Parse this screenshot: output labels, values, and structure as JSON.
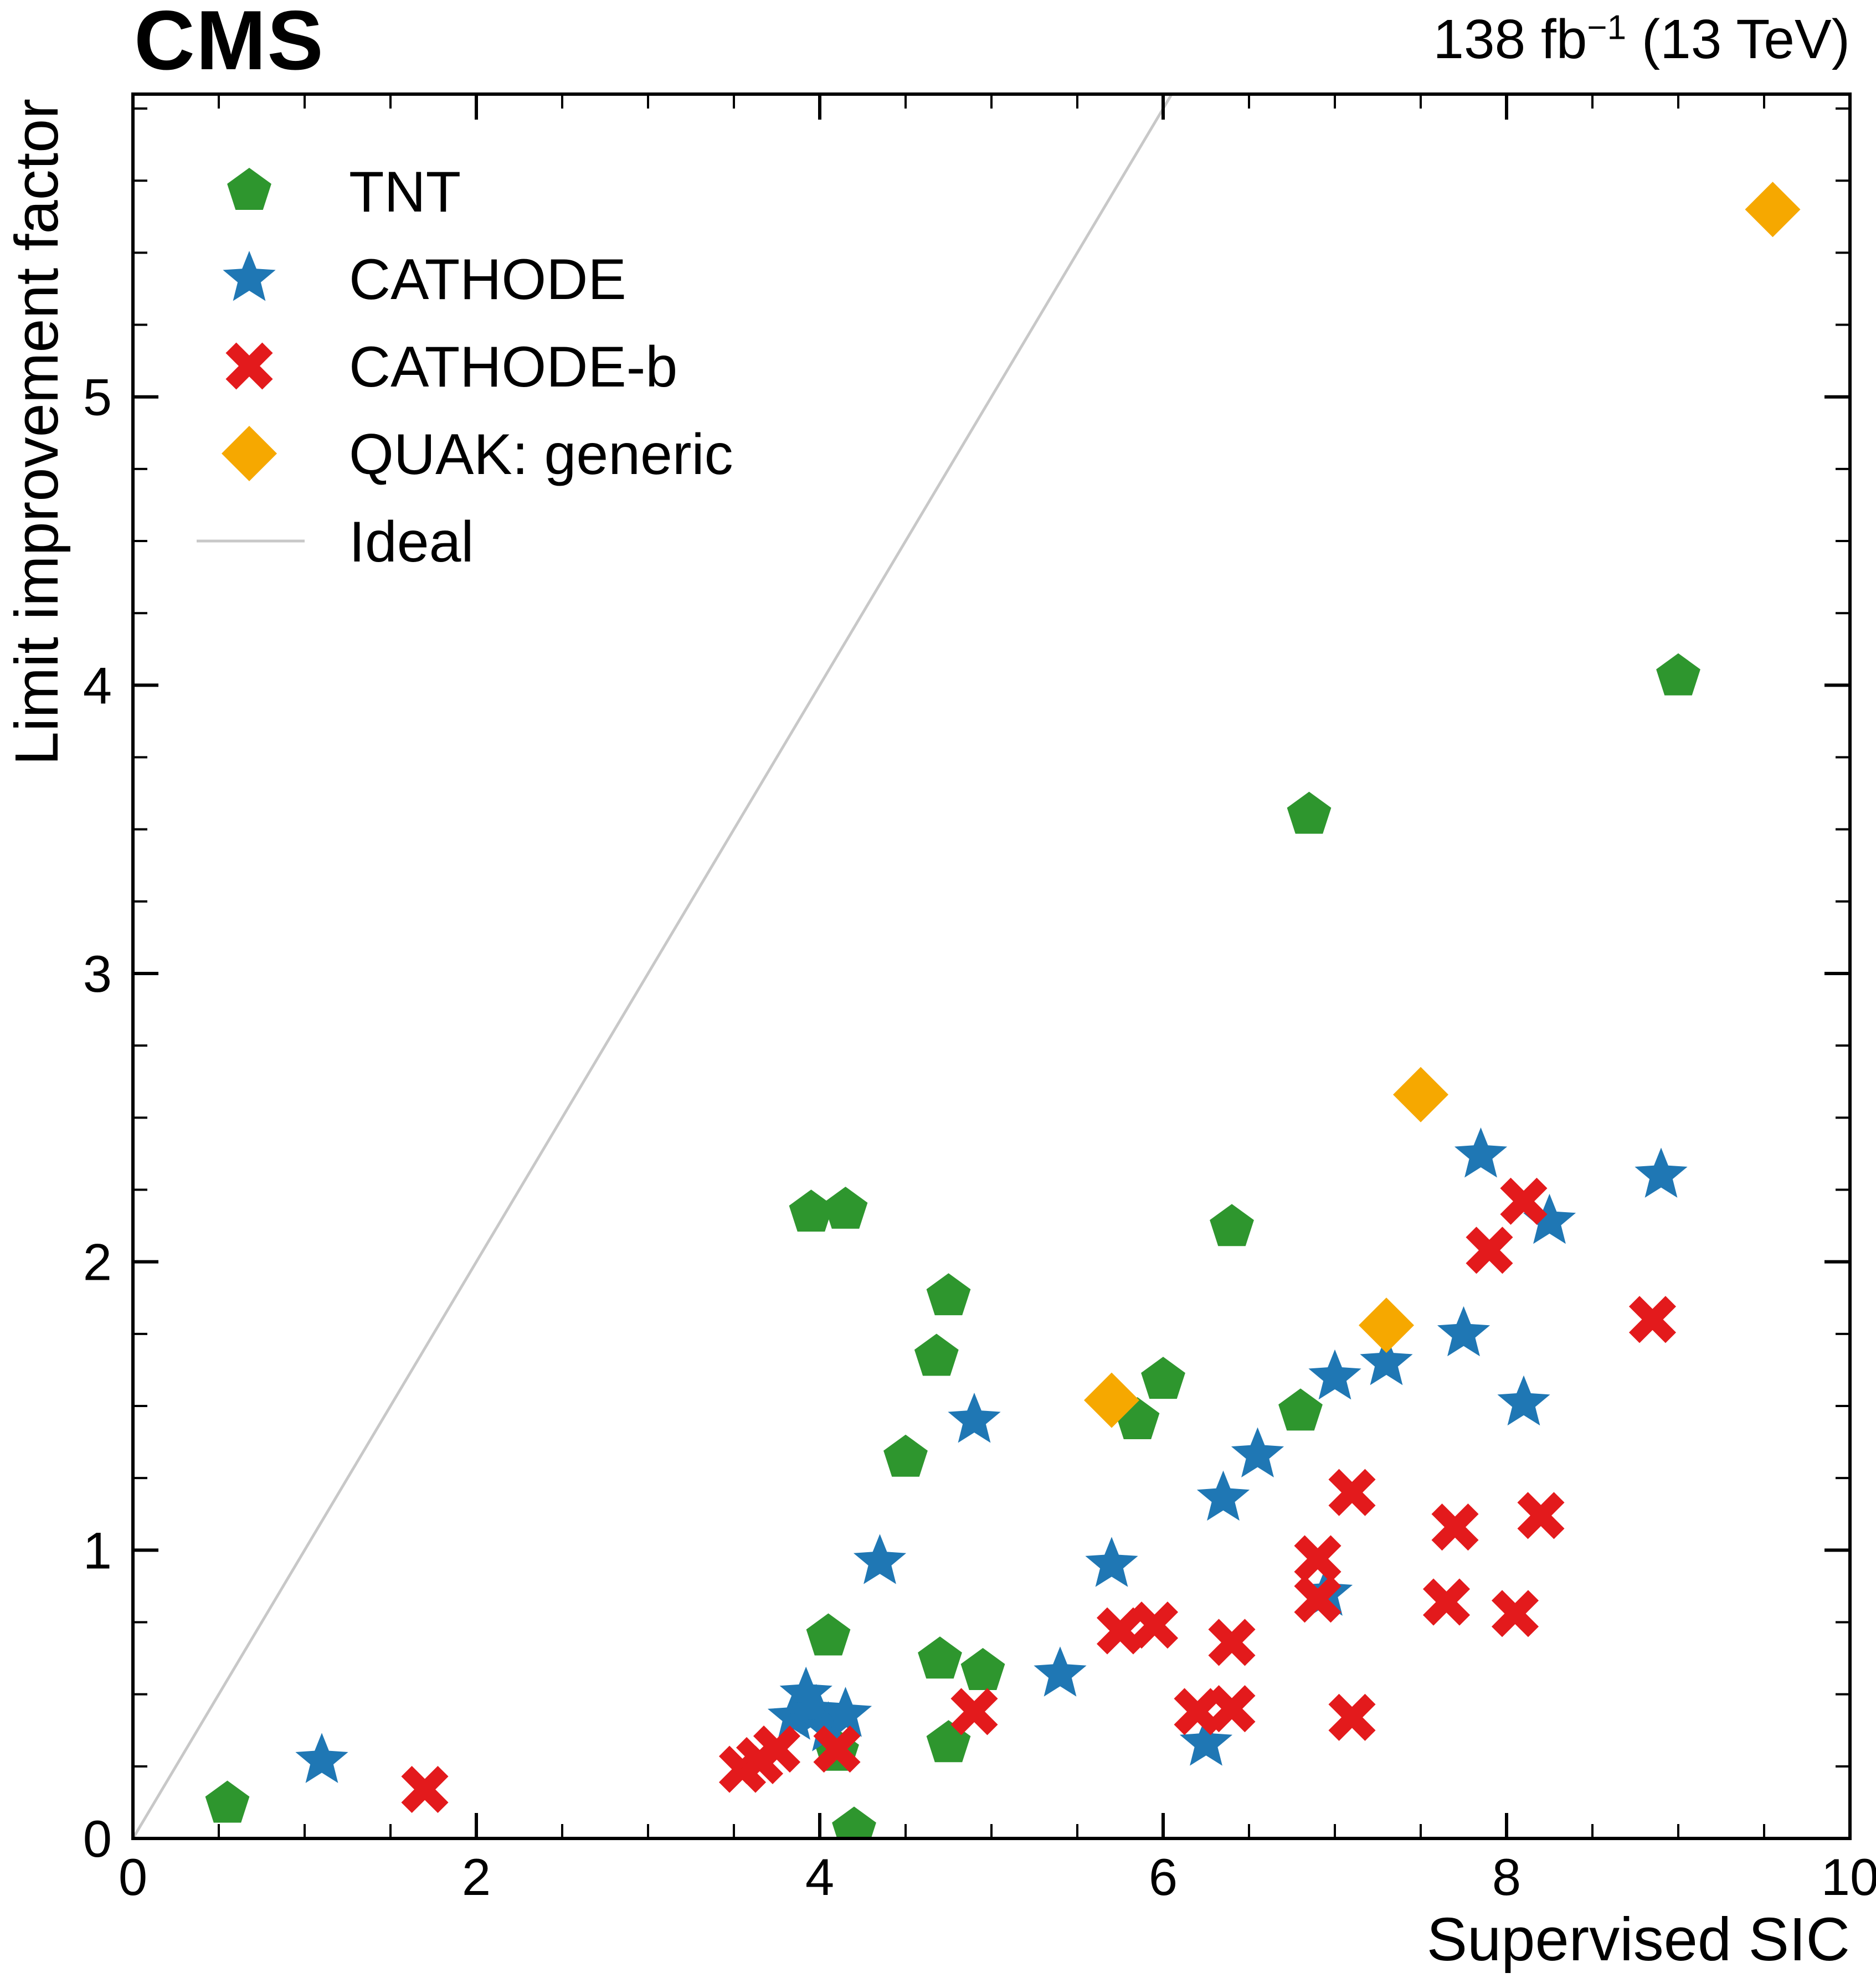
{
  "header": {
    "experiment": "CMS",
    "lumi_value": "138 fb",
    "lumi_sup": "−1",
    "lumi_suffix": " (13 TeV)"
  },
  "chart_data": {
    "type": "scatter",
    "title": "",
    "xlabel": "Supervised SIC",
    "ylabel": "Limit improvement factor",
    "xlim": [
      0,
      10
    ],
    "ylim": [
      0,
      6.05
    ],
    "xticks": [
      0,
      2,
      4,
      6,
      8,
      10
    ],
    "yticks": [
      0,
      1,
      2,
      3,
      4,
      5
    ],
    "x_minor_step": 0.5,
    "y_minor_step": 0.25,
    "grid": false,
    "legend_position": "top-left",
    "frame_color": "#000000",
    "series": [
      {
        "name": "TNT",
        "marker": "pentagon",
        "color": "#2e962e",
        "points": [
          [
            0.55,
            0.12
          ],
          [
            3.95,
            2.17
          ],
          [
            4.15,
            2.18
          ],
          [
            4.75,
            1.88
          ],
          [
            4.68,
            1.67
          ],
          [
            4.5,
            1.32
          ],
          [
            6.4,
            2.12
          ],
          [
            6.85,
            3.55
          ],
          [
            9.0,
            4.03
          ],
          [
            5.85,
            1.45
          ],
          [
            6.0,
            1.59
          ],
          [
            6.8,
            1.48
          ],
          [
            4.05,
            0.7
          ],
          [
            4.7,
            0.62
          ],
          [
            4.95,
            0.58
          ],
          [
            4.1,
            0.3
          ],
          [
            4.75,
            0.33
          ],
          [
            4.2,
            0.03
          ]
        ]
      },
      {
        "name": "CATHODE",
        "marker": "star",
        "color": "#1f77b4",
        "points": [
          [
            1.1,
            0.27
          ],
          [
            3.85,
            0.42
          ],
          [
            3.92,
            0.5
          ],
          [
            3.98,
            0.44
          ],
          [
            4.05,
            0.38
          ],
          [
            4.15,
            0.43
          ],
          [
            4.35,
            0.96
          ],
          [
            4.9,
            1.45
          ],
          [
            5.4,
            0.57
          ],
          [
            5.7,
            0.95
          ],
          [
            6.25,
            0.33
          ],
          [
            6.35,
            1.18
          ],
          [
            6.55,
            1.33
          ],
          [
            6.95,
            0.85
          ],
          [
            7.0,
            1.6
          ],
          [
            7.3,
            1.65
          ],
          [
            7.75,
            1.75
          ],
          [
            7.85,
            2.37
          ],
          [
            8.1,
            1.51
          ],
          [
            8.25,
            2.14
          ],
          [
            8.9,
            2.3
          ]
        ]
      },
      {
        "name": "CATHODE-b",
        "marker": "x",
        "color": "#e31a1c",
        "points": [
          [
            1.7,
            0.17
          ],
          [
            3.55,
            0.24
          ],
          [
            3.65,
            0.27
          ],
          [
            3.75,
            0.31
          ],
          [
            4.1,
            0.31
          ],
          [
            4.9,
            0.44
          ],
          [
            5.75,
            0.72
          ],
          [
            5.95,
            0.74
          ],
          [
            6.2,
            0.44
          ],
          [
            6.4,
            0.45
          ],
          [
            6.4,
            0.68
          ],
          [
            6.9,
            0.97
          ],
          [
            6.9,
            0.83
          ],
          [
            7.1,
            1.2
          ],
          [
            7.1,
            0.42
          ],
          [
            7.7,
            1.08
          ],
          [
            7.65,
            0.82
          ],
          [
            8.05,
            0.78
          ],
          [
            7.9,
            2.04
          ],
          [
            8.1,
            2.21
          ],
          [
            8.2,
            1.12
          ],
          [
            8.85,
            1.8
          ]
        ]
      },
      {
        "name": "QUAK: generic",
        "marker": "diamond",
        "color": "#f6a800",
        "points": [
          [
            5.7,
            1.52
          ],
          [
            7.3,
            1.78
          ],
          [
            7.5,
            2.58
          ],
          [
            9.55,
            5.65
          ]
        ]
      }
    ],
    "reference_line": {
      "name": "Ideal",
      "color": "#c8c8c8",
      "slope": 1,
      "intercept": 0
    }
  }
}
